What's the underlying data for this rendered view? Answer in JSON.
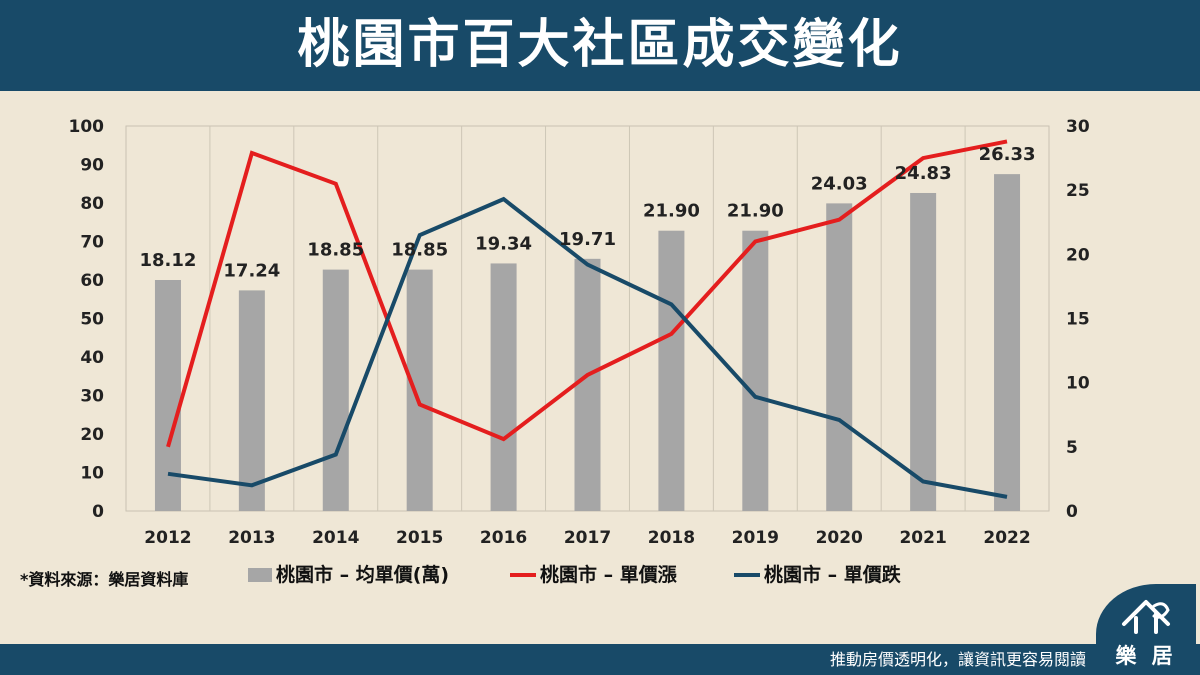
{
  "header": {
    "title": "桃園市百大社區成交變化"
  },
  "source_note": "*資料來源：樂居資料庫",
  "footer": {
    "slogan": "推動房價透明化，讓資訊更容易閱讀",
    "brand": "樂 居",
    "logo_icon": "house-pen-logo"
  },
  "colors": {
    "header_bg": "#184a68",
    "page_bg": "#efe7d6",
    "bar": "#a6a6a6",
    "rise": "#e41e1e",
    "fall": "#184a68"
  },
  "chart_data": {
    "type": "bar",
    "categories": [
      "2012",
      "2013",
      "2014",
      "2015",
      "2016",
      "2017",
      "2018",
      "2019",
      "2020",
      "2021",
      "2022"
    ],
    "y_left": {
      "ticks": [
        "0",
        "10",
        "20",
        "30",
        "40",
        "50",
        "60",
        "70",
        "80",
        "90",
        "100"
      ],
      "range": [
        0,
        100
      ]
    },
    "y_right": {
      "ticks": [
        "0",
        "5",
        "10",
        "15",
        "20",
        "25",
        "30"
      ],
      "range": [
        0,
        30
      ]
    },
    "grid": "vertical-only",
    "legend": "bottom",
    "series": [
      {
        "name": "桃園市 – 均單價(萬)",
        "type": "bar",
        "axis": "left",
        "color": "#a6a6a6",
        "values": [
          60,
          57.3,
          62.7,
          62.7,
          64.3,
          65.5,
          72.8,
          72.8,
          79.9,
          82.6,
          87.5
        ],
        "labels": [
          "18.12",
          "17.24",
          "18.85",
          "18.85",
          "19.34",
          "19.71",
          "21.90",
          "21.90",
          "24.03",
          "24.83",
          "26.33"
        ]
      },
      {
        "name": "桃園市 – 單價漲",
        "type": "line",
        "axis": "right",
        "color": "#e41e1e",
        "values": [
          5,
          27.9,
          25.5,
          8.3,
          5.6,
          10.6,
          13.8,
          21,
          22.7,
          27.5,
          28.8
        ]
      },
      {
        "name": "桃園市 – 單價跌",
        "type": "line",
        "axis": "right",
        "color": "#184a68",
        "values": [
          2.9,
          2,
          4.4,
          21.5,
          24.3,
          19.2,
          16.1,
          8.9,
          7.1,
          2.3,
          1.1
        ]
      }
    ]
  }
}
